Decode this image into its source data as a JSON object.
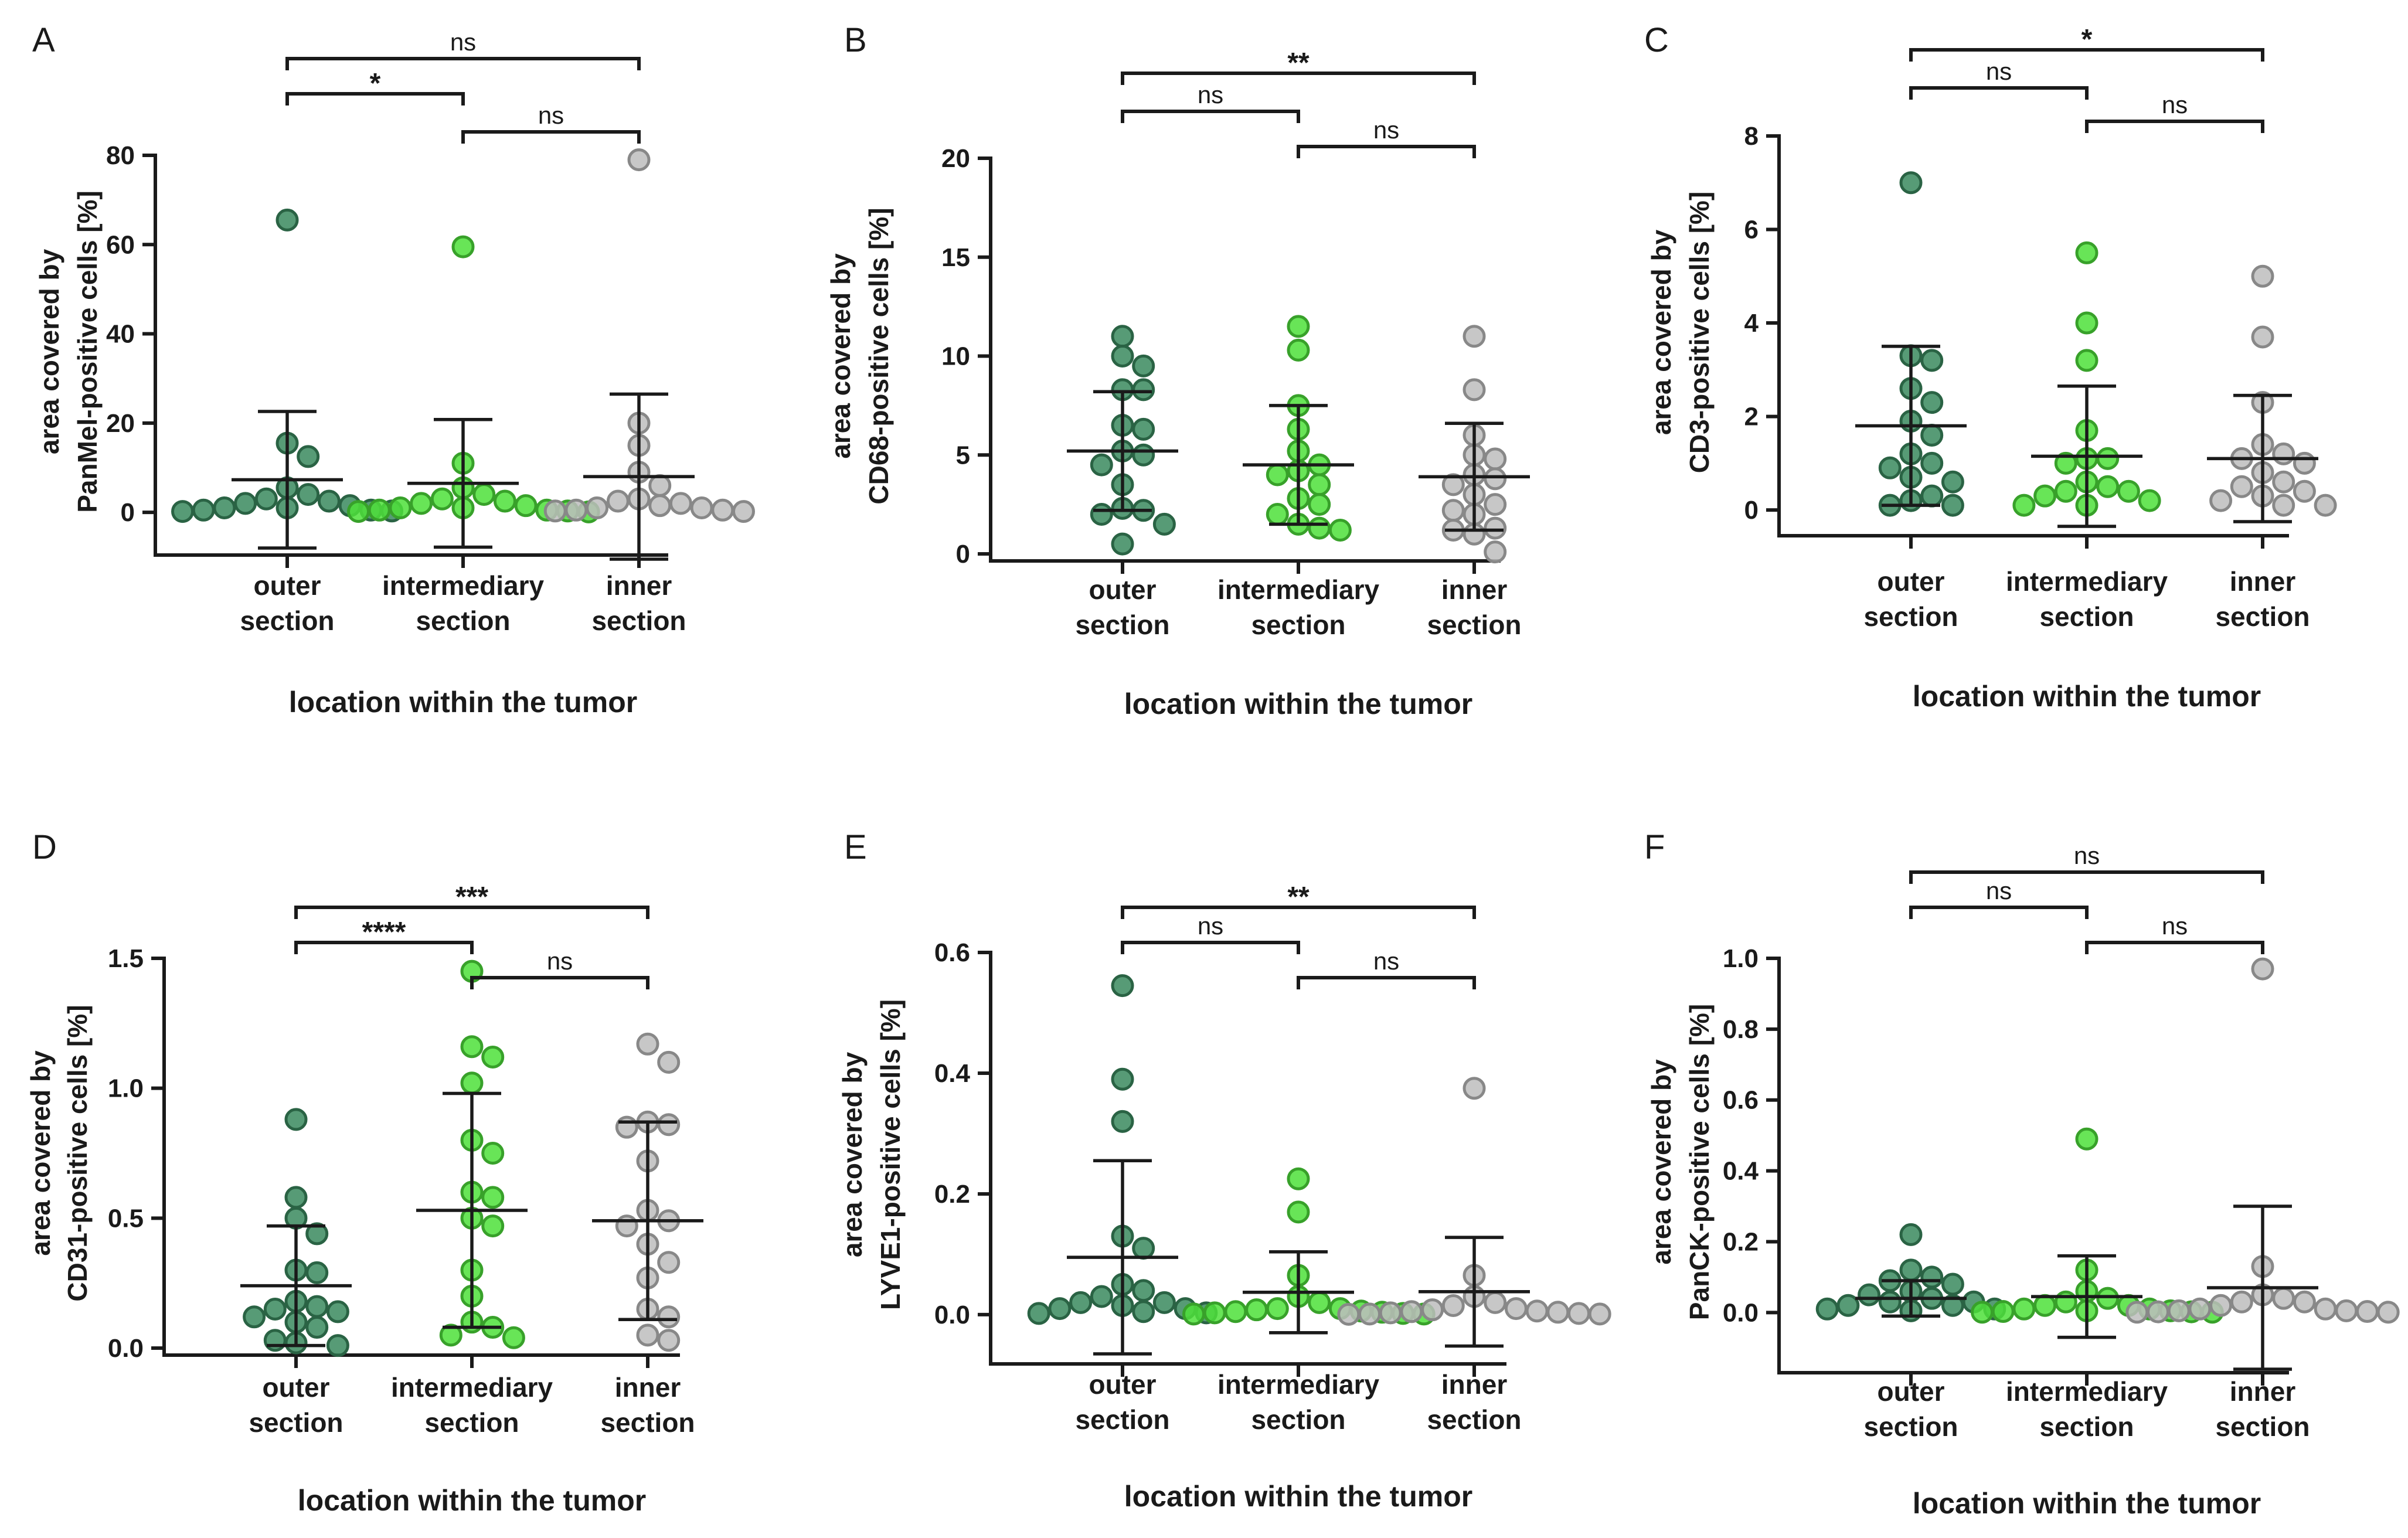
{
  "figure": {
    "x_axis_title": "location within the tumor",
    "category_line1": [
      "outer",
      "intermediary",
      "inner"
    ],
    "category_line2": [
      "section",
      "section",
      "section"
    ],
    "colors": {
      "outer": "#3a8a5e",
      "intermediary": "#4ee03a",
      "inner": "#bdbdbd"
    }
  },
  "chart_data": [
    {
      "panel": "A",
      "type": "scatter",
      "ylabel": [
        "area covered by",
        "PanMel-positive cells [%]"
      ],
      "xlabel": "location within the tumor",
      "categories": [
        "outer section",
        "intermediary section",
        "inner section"
      ],
      "ylim": [
        -8,
        80
      ],
      "yticks": [
        0,
        20,
        40,
        60,
        80
      ],
      "series": [
        {
          "name": "outer section",
          "mean": 7.3,
          "sd": 15.3,
          "points": [
            65.5,
            15.5,
            12.5,
            5.5,
            4,
            3,
            2.5,
            2,
            1.5,
            1,
            1,
            0.5,
            0.5,
            0.3,
            0.2
          ]
        },
        {
          "name": "intermediary section",
          "mean": 6.5,
          "sd": 14.3,
          "points": [
            59.5,
            11,
            5.5,
            4,
            3,
            2.5,
            2,
            1.5,
            1,
            1,
            0.5,
            0.5,
            0.3,
            0.2,
            0.1
          ]
        },
        {
          "name": "inner section",
          "mean": 8,
          "sd": 18.5,
          "points": [
            79,
            20,
            15,
            9,
            6,
            3,
            2.5,
            2,
            1.5,
            1,
            1,
            0.5,
            0.5,
            0.3,
            0.2
          ]
        }
      ],
      "comparisons": [
        {
          "groups": [
            0,
            2
          ],
          "label": "ns"
        },
        {
          "groups": [
            0,
            1
          ],
          "label": "*"
        },
        {
          "groups": [
            1,
            2
          ],
          "label": "ns"
        }
      ]
    },
    {
      "panel": "B",
      "type": "scatter",
      "ylabel": [
        "area covered by",
        "CD68-positive cells [%]"
      ],
      "xlabel": "location within the tumor",
      "categories": [
        "outer section",
        "intermediary section",
        "inner section"
      ],
      "ylim": [
        0,
        20
      ],
      "yticks": [
        0,
        5,
        10,
        15,
        20
      ],
      "series": [
        {
          "name": "outer section",
          "mean": 5.2,
          "sd": 3,
          "points": [
            11,
            10,
            9.5,
            8.3,
            8.3,
            6.5,
            6.3,
            5.2,
            5,
            4.5,
            3.5,
            2.3,
            2.2,
            2,
            1.5,
            0.5
          ]
        },
        {
          "name": "intermediary section",
          "mean": 4.5,
          "sd": 3,
          "points": [
            11.5,
            10.3,
            7.5,
            6.3,
            5.2,
            4.5,
            4.2,
            4,
            3.5,
            2.8,
            2.5,
            2,
            1.5,
            1.3,
            1.2
          ]
        },
        {
          "name": "inner section",
          "mean": 3.9,
          "sd": 2.7,
          "points": [
            11,
            8.3,
            6,
            5,
            4.8,
            4,
            3.8,
            3.5,
            3,
            2.5,
            2.2,
            2,
            1.3,
            1.2,
            1,
            0.1
          ]
        }
      ],
      "comparisons": [
        {
          "groups": [
            0,
            2
          ],
          "label": "**"
        },
        {
          "groups": [
            0,
            1
          ],
          "label": "ns"
        },
        {
          "groups": [
            1,
            2
          ],
          "label": "ns"
        }
      ]
    },
    {
      "panel": "C",
      "type": "scatter",
      "ylabel": [
        "area covered by",
        "CD3-positive cells [%]"
      ],
      "xlabel": "location within the tumor",
      "categories": [
        "outer section",
        "intermediary section",
        "inner section"
      ],
      "ylim": [
        -0.4,
        8
      ],
      "yticks": [
        0,
        2,
        4,
        6,
        8
      ],
      "series": [
        {
          "name": "outer section",
          "mean": 1.8,
          "sd": 1.7,
          "points": [
            7,
            3.3,
            3.2,
            2.6,
            2.3,
            1.9,
            1.6,
            1.2,
            1,
            0.9,
            0.7,
            0.6,
            0.3,
            0.2,
            0.1,
            0.1
          ]
        },
        {
          "name": "intermediary section",
          "mean": 1.15,
          "sd": 1.5,
          "points": [
            5.5,
            4,
            3.2,
            1.7,
            1.1,
            1.1,
            1,
            0.6,
            0.5,
            0.4,
            0.4,
            0.3,
            0.2,
            0.1,
            0.1
          ]
        },
        {
          "name": "inner section",
          "mean": 1.1,
          "sd": 1.35,
          "points": [
            5,
            3.7,
            2.3,
            1.4,
            1.2,
            1.1,
            1,
            0.8,
            0.6,
            0.5,
            0.4,
            0.3,
            0.2,
            0.1,
            0.1
          ]
        }
      ],
      "comparisons": [
        {
          "groups": [
            0,
            2
          ],
          "label": "*"
        },
        {
          "groups": [
            0,
            1
          ],
          "label": "ns"
        },
        {
          "groups": [
            1,
            2
          ],
          "label": "ns"
        }
      ]
    },
    {
      "panel": "D",
      "type": "scatter",
      "ylabel": [
        "area covered by",
        "CD31-positive cells [%]"
      ],
      "xlabel": "location within the tumor",
      "categories": [
        "outer section",
        "intermediary section",
        "inner section"
      ],
      "ylim": [
        0,
        1.5
      ],
      "yticks": [
        0.0,
        0.5,
        1.0,
        1.5
      ],
      "tick_labels": [
        "0.0",
        "0.5",
        "1.0",
        "1.5"
      ],
      "series": [
        {
          "name": "outer section",
          "mean": 0.24,
          "sd": 0.23,
          "points": [
            0.88,
            0.58,
            0.5,
            0.44,
            0.3,
            0.29,
            0.18,
            0.16,
            0.15,
            0.14,
            0.12,
            0.1,
            0.08,
            0.03,
            0.02,
            0.01
          ]
        },
        {
          "name": "intermediary section",
          "mean": 0.53,
          "sd": 0.45,
          "points": [
            1.45,
            1.16,
            1.12,
            1.02,
            0.8,
            0.75,
            0.6,
            0.58,
            0.5,
            0.47,
            0.3,
            0.2,
            0.1,
            0.08,
            0.05,
            0.04
          ]
        },
        {
          "name": "inner section",
          "mean": 0.49,
          "sd": 0.38,
          "points": [
            1.17,
            1.1,
            0.87,
            0.86,
            0.85,
            0.72,
            0.53,
            0.49,
            0.47,
            0.4,
            0.33,
            0.27,
            0.15,
            0.12,
            0.05,
            0.03
          ]
        }
      ],
      "comparisons": [
        {
          "groups": [
            0,
            2
          ],
          "label": "***"
        },
        {
          "groups": [
            0,
            1
          ],
          "label": "****"
        },
        {
          "groups": [
            1,
            2
          ],
          "label": "ns"
        }
      ]
    },
    {
      "panel": "E",
      "type": "scatter",
      "ylabel": [
        "area covered by",
        "LYVE1-positive cells [%]"
      ],
      "xlabel": "location within the tumor",
      "categories": [
        "outer section",
        "intermediary section",
        "inner section"
      ],
      "ylim": [
        -0.07,
        0.6
      ],
      "yticks": [
        0.0,
        0.2,
        0.4,
        0.6
      ],
      "tick_labels": [
        "0.0",
        "0.2",
        "0.4",
        "0.6"
      ],
      "series": [
        {
          "name": "outer section",
          "mean": 0.095,
          "sd": 0.16,
          "points": [
            0.545,
            0.39,
            0.32,
            0.13,
            0.11,
            0.05,
            0.04,
            0.03,
            0.02,
            0.02,
            0.015,
            0.01,
            0.01,
            0.005,
            0.003,
            0.002
          ]
        },
        {
          "name": "intermediary section",
          "mean": 0.037,
          "sd": 0.067,
          "points": [
            0.225,
            0.17,
            0.065,
            0.03,
            0.02,
            0.01,
            0.01,
            0.008,
            0.006,
            0.005,
            0.004,
            0.003,
            0.002,
            0.001,
            0.001
          ]
        },
        {
          "name": "inner section",
          "mean": 0.038,
          "sd": 0.09,
          "points": [
            0.375,
            0.065,
            0.03,
            0.02,
            0.015,
            0.01,
            0.008,
            0.006,
            0.005,
            0.004,
            0.003,
            0.002,
            0.001,
            0.001,
            0.0005
          ]
        }
      ],
      "comparisons": [
        {
          "groups": [
            0,
            2
          ],
          "label": "**"
        },
        {
          "groups": [
            0,
            1
          ],
          "label": "ns"
        },
        {
          "groups": [
            1,
            2
          ],
          "label": "ns"
        }
      ]
    },
    {
      "panel": "F",
      "type": "scatter",
      "ylabel": [
        "area covered by",
        "PanCK-positive cells [%]"
      ],
      "xlabel": "location within the tumor",
      "categories": [
        "outer section",
        "intermediary section",
        "inner section"
      ],
      "ylim": [
        -0.15,
        1.0
      ],
      "yticks": [
        0.0,
        0.2,
        0.4,
        0.6,
        0.8,
        1.0
      ],
      "tick_labels": [
        "0.0",
        "0.2",
        "0.4",
        "0.6",
        "0.8",
        "1.0"
      ],
      "series": [
        {
          "name": "outer section",
          "mean": 0.04,
          "sd": 0.05,
          "points": [
            0.22,
            0.12,
            0.1,
            0.09,
            0.08,
            0.06,
            0.05,
            0.04,
            0.03,
            0.03,
            0.02,
            0.02,
            0.01,
            0.01,
            0.005
          ]
        },
        {
          "name": "intermediary section",
          "mean": 0.045,
          "sd": 0.115,
          "points": [
            0.49,
            0.12,
            0.06,
            0.04,
            0.03,
            0.02,
            0.02,
            0.01,
            0.01,
            0.005,
            0.005,
            0.003,
            0.002,
            0.001,
            0.001
          ]
        },
        {
          "name": "inner section",
          "mean": 0.07,
          "sd": 0.23,
          "points": [
            0.97,
            0.13,
            0.05,
            0.04,
            0.03,
            0.03,
            0.02,
            0.01,
            0.01,
            0.005,
            0.005,
            0.003,
            0.002,
            0.001,
            0.001
          ]
        }
      ],
      "comparisons": [
        {
          "groups": [
            0,
            2
          ],
          "label": "ns"
        },
        {
          "groups": [
            0,
            1
          ],
          "label": "ns"
        },
        {
          "groups": [
            1,
            2
          ],
          "label": "ns"
        }
      ]
    }
  ]
}
